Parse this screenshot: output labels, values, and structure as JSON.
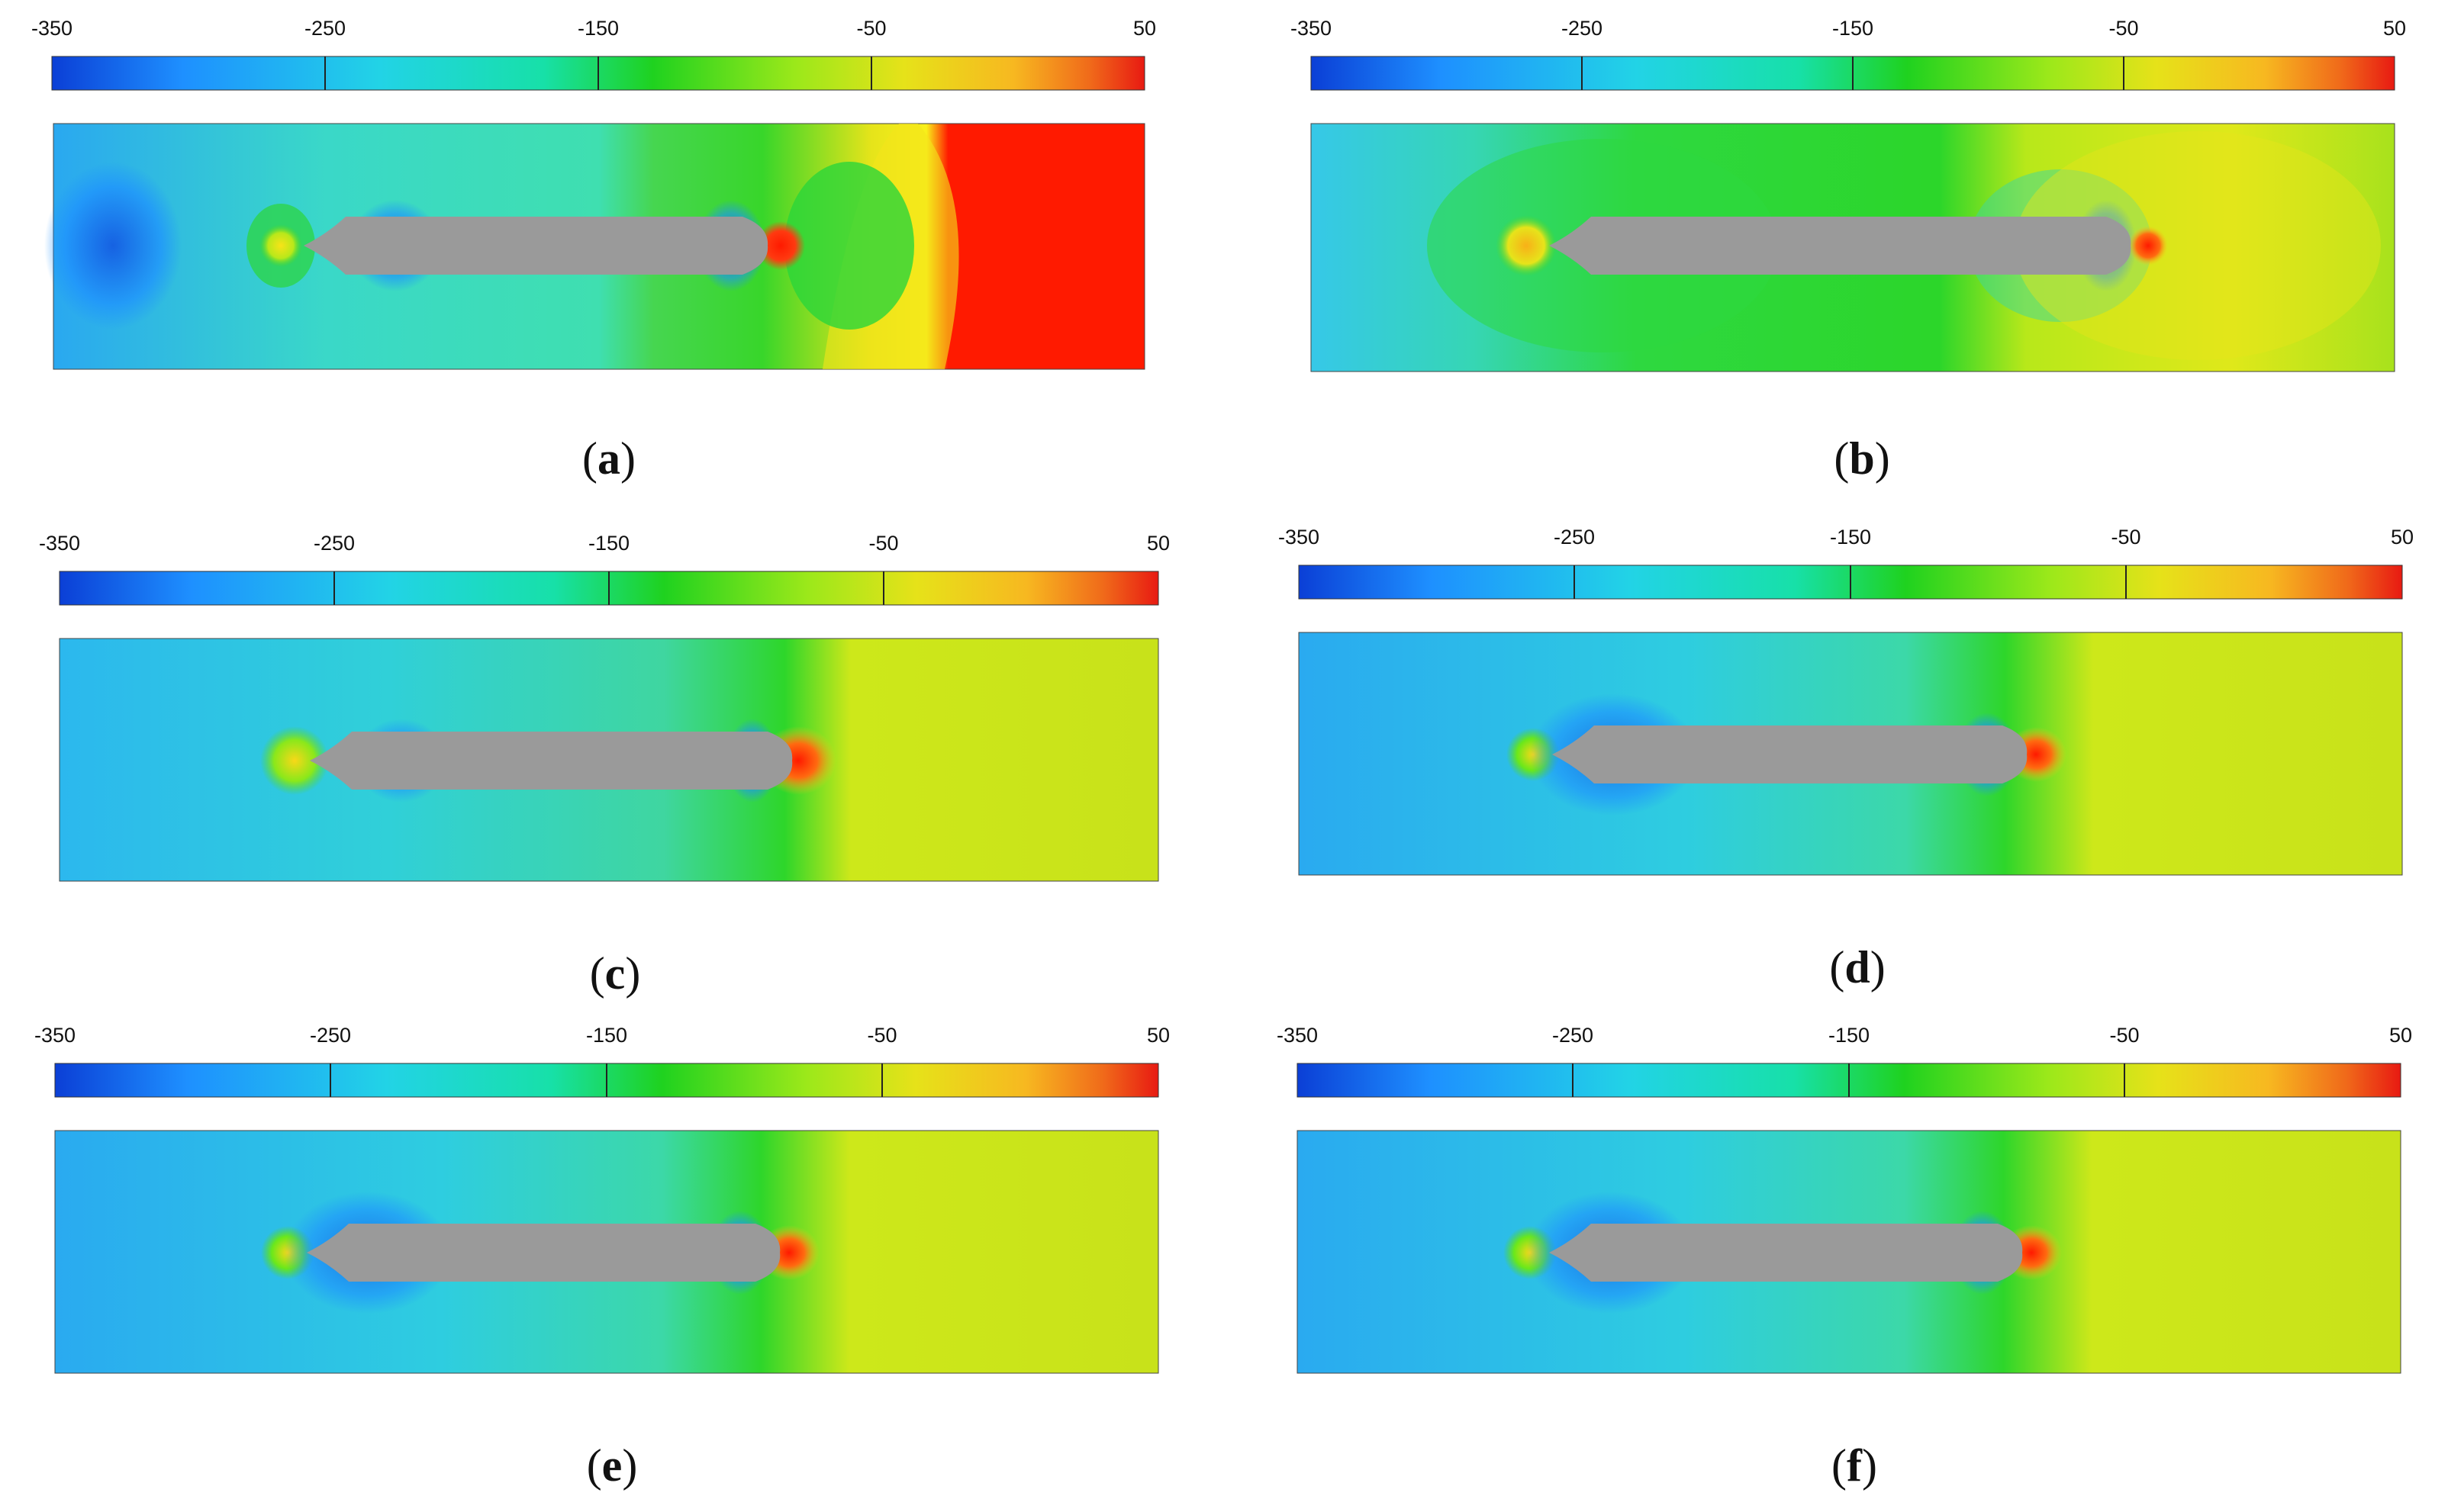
{
  "colorbar": {
    "ticks": [
      "-350",
      "-250",
      "-150",
      "-50",
      "50"
    ],
    "min": -350,
    "max": 50,
    "colors": [
      "#0b3fd6",
      "#1e90ff",
      "#22d3e6",
      "#17e0a8",
      "#1fd21f",
      "#9be81a",
      "#e6e219",
      "#f7b820",
      "#f06a1a",
      "#e81a12"
    ]
  },
  "hull_color": "#9a9a9a",
  "panels": [
    {
      "letter": "a",
      "paren_open": "(",
      "paren_close": ")"
    },
    {
      "letter": "b",
      "paren_open": "(",
      "paren_close": ")"
    },
    {
      "letter": "c",
      "paren_open": "(",
      "paren_close": ")"
    },
    {
      "letter": "d",
      "paren_open": "(",
      "paren_close": ")"
    },
    {
      "letter": "e",
      "paren_open": "(",
      "paren_close": ")"
    },
    {
      "letter": "f",
      "paren_open": "(",
      "paren_close": ")"
    }
  ]
}
